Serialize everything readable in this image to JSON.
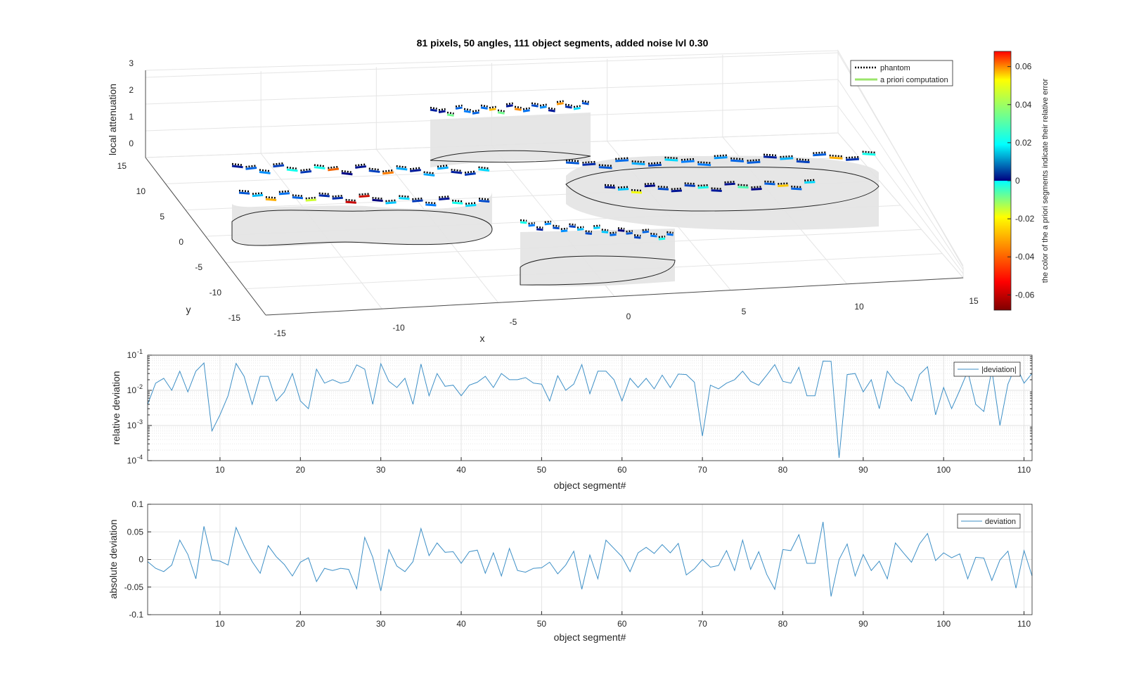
{
  "figure": {
    "title": "81 pixels, 50 angles, 111 object segments, added noise lvl 0.30"
  },
  "surface3d": {
    "zlabel": "local attenuation",
    "xlabel": "x",
    "ylabel": "y",
    "z_ticks": [
      "0",
      "1",
      "2",
      "3"
    ],
    "y_ticks": [
      "15",
      "10",
      "5",
      "0",
      "-5",
      "-10",
      "-15"
    ],
    "x_ticks": [
      "-15",
      "-10",
      "-5",
      "0",
      "5",
      "10",
      "15"
    ],
    "legend": [
      "phantom",
      "a priori computation"
    ],
    "legend_colors": [
      "#000000",
      "#9be56b"
    ],
    "fill_color": "#e3e3e3"
  },
  "colorbar": {
    "label": "the color of the a priori segments indicate their relative error",
    "ticks": [
      "0.06",
      "0.04",
      "0.02",
      "0",
      "-0.02",
      "-0.04",
      "-0.06"
    ],
    "range": [
      -0.068,
      0.068
    ],
    "colormap": "jet"
  },
  "chart_data": [
    {
      "type": "line",
      "scale": "log",
      "xlabel": "object segment#",
      "ylabel": "relative deviation",
      "legend": "|deviation|",
      "xlim": [
        1,
        111
      ],
      "ylim": [
        0.0001,
        0.1
      ],
      "x_ticks": [
        "10",
        "20",
        "30",
        "40",
        "50",
        "60",
        "70",
        "80",
        "90",
        "100",
        "110"
      ],
      "y_ticks": [
        {
          "base": "10",
          "exp": "-1"
        },
        {
          "base": "10",
          "exp": "-2"
        },
        {
          "base": "10",
          "exp": "-3"
        },
        {
          "base": "10",
          "exp": "-4"
        }
      ],
      "grid": true,
      "color": "#3d8fc6",
      "values": [
        0.004,
        0.016,
        0.022,
        0.01,
        0.035,
        0.009,
        0.035,
        0.06,
        0.0007,
        0.002,
        0.007,
        0.058,
        0.025,
        0.004,
        0.025,
        0.025,
        0.005,
        0.009,
        0.03,
        0.005,
        0.003,
        0.04,
        0.016,
        0.02,
        0.016,
        0.018,
        0.053,
        0.04,
        0.004,
        0.057,
        0.018,
        0.012,
        0.022,
        0.004,
        0.056,
        0.007,
        0.03,
        0.013,
        0.014,
        0.007,
        0.014,
        0.017,
        0.025,
        0.012,
        0.03,
        0.02,
        0.02,
        0.023,
        0.016,
        0.015,
        0.005,
        0.026,
        0.01,
        0.015,
        0.054,
        0.008,
        0.035,
        0.035,
        0.02,
        0.005,
        0.022,
        0.012,
        0.022,
        0.011,
        0.027,
        0.012,
        0.029,
        0.028,
        0.017,
        0.0005,
        0.014,
        0.011,
        0.016,
        0.02,
        0.035,
        0.018,
        0.014,
        0.027,
        0.054,
        0.018,
        0.016,
        0.045,
        0.007,
        0.007,
        0.068,
        0.067,
        0.00012,
        0.028,
        0.03,
        0.009,
        0.02,
        0.003,
        0.035,
        0.017,
        0.012,
        0.005,
        0.028,
        0.047,
        0.002,
        0.012,
        0.003,
        0.01,
        0.035,
        0.004,
        0.0025,
        0.038,
        0.001,
        0.015,
        0.052,
        0.016,
        0.03
      ]
    },
    {
      "type": "line",
      "scale": "linear",
      "xlabel": "object segment#",
      "ylabel": "absolute deviation",
      "legend": "deviation",
      "xlim": [
        1,
        111
      ],
      "ylim": [
        -0.1,
        0.1
      ],
      "x_ticks": [
        "10",
        "20",
        "30",
        "40",
        "50",
        "60",
        "70",
        "80",
        "90",
        "100",
        "110"
      ],
      "y_ticks": [
        "0.1",
        "0.05",
        "0",
        "-0.05",
        "-0.1"
      ],
      "grid": true,
      "color": "#3d8fc6",
      "values": [
        -0.004,
        -0.016,
        -0.022,
        -0.01,
        0.035,
        0.009,
        -0.035,
        0.06,
        -0.001,
        -0.003,
        -0.01,
        0.058,
        0.025,
        -0.004,
        -0.025,
        0.025,
        0.005,
        -0.009,
        -0.03,
        -0.005,
        0.003,
        -0.04,
        -0.016,
        -0.02,
        -0.016,
        -0.018,
        -0.053,
        0.04,
        0.004,
        -0.057,
        0.018,
        -0.012,
        -0.022,
        -0.004,
        0.056,
        0.007,
        0.03,
        0.013,
        0.014,
        -0.007,
        0.014,
        0.017,
        -0.025,
        0.012,
        -0.03,
        0.02,
        -0.02,
        -0.023,
        -0.016,
        -0.015,
        -0.005,
        -0.026,
        -0.01,
        0.015,
        -0.054,
        0.008,
        -0.035,
        0.035,
        0.02,
        0.005,
        -0.022,
        0.012,
        0.022,
        0.011,
        0.027,
        0.012,
        0.029,
        -0.028,
        -0.017,
        0.0,
        -0.014,
        -0.011,
        0.016,
        -0.02,
        0.035,
        -0.018,
        0.014,
        -0.027,
        -0.054,
        0.018,
        0.016,
        0.045,
        -0.007,
        -0.007,
        0.068,
        -0.067,
        0.0,
        0.028,
        -0.03,
        0.009,
        -0.02,
        -0.003,
        -0.035,
        0.03,
        0.012,
        -0.005,
        0.028,
        0.047,
        -0.002,
        0.012,
        0.003,
        0.01,
        -0.035,
        0.004,
        0.0025,
        -0.038,
        -0.001,
        0.015,
        -0.052,
        0.016,
        -0.03
      ]
    }
  ]
}
